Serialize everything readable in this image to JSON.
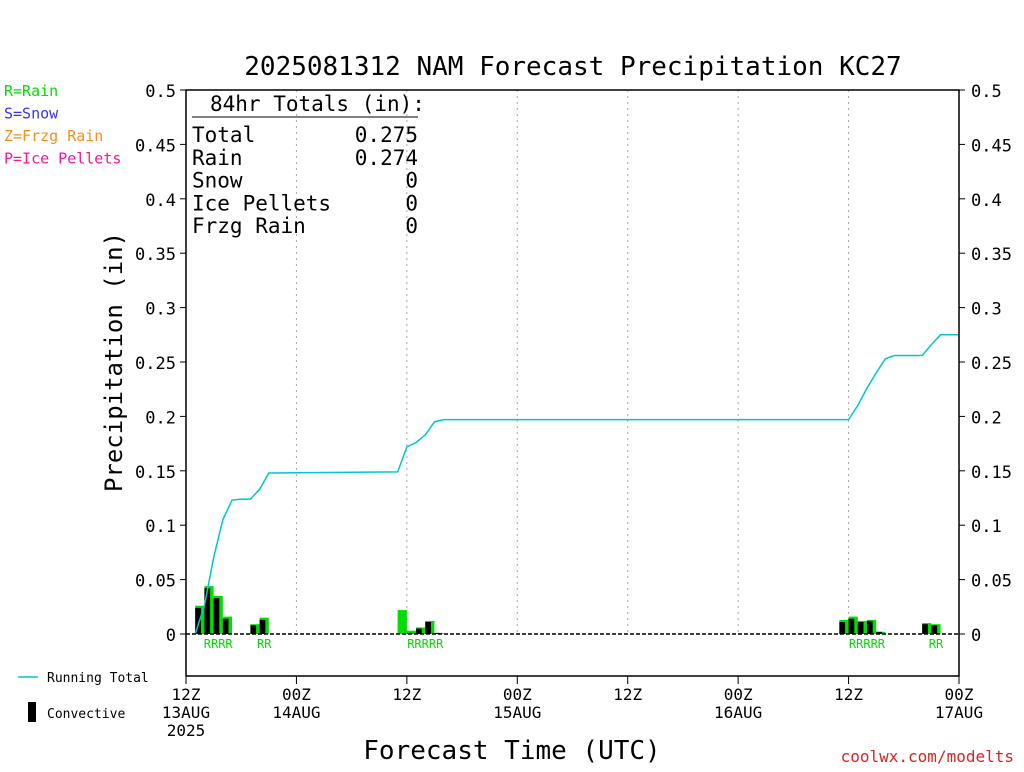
{
  "chart_data": {
    "type": "bar",
    "title": "2025081312 NAM Forecast Precipitation KC27",
    "xlabel": "Forecast Time (UTC)",
    "ylabel": "Precipitation (in)",
    "ylim": [
      0,
      0.5
    ],
    "xlim_hours": [
      0,
      84
    ],
    "y_ticks": [
      "0",
      "0.05",
      "0.1",
      "0.15",
      "0.2",
      "0.25",
      "0.3",
      "0.35",
      "0.4",
      "0.45",
      "0.5"
    ],
    "x_ticks": [
      {
        "hour": 0,
        "lines": [
          "12Z",
          "13AUG",
          "2025"
        ]
      },
      {
        "hour": 12,
        "lines": [
          "00Z",
          "14AUG"
        ]
      },
      {
        "hour": 24,
        "lines": [
          "12Z"
        ]
      },
      {
        "hour": 36,
        "lines": [
          "00Z",
          "15AUG"
        ]
      },
      {
        "hour": 48,
        "lines": [
          "12Z"
        ]
      },
      {
        "hour": 60,
        "lines": [
          "00Z",
          "16AUG"
        ]
      },
      {
        "hour": 72,
        "lines": [
          "12Z"
        ]
      },
      {
        "hour": 84,
        "lines": [
          "00Z",
          "17AUG"
        ]
      }
    ],
    "grid": "vertical dotted at 12Z/00Z",
    "precip_legend": [
      {
        "text": "R=Rain",
        "color": "#00dd00"
      },
      {
        "text": "S=Snow",
        "color": "#3333ff"
      },
      {
        "text": "Z=Frzg Rain",
        "color": "#ff8c1a"
      },
      {
        "text": "P=Ice Pellets",
        "color": "#ff1493"
      }
    ],
    "series_legend": {
      "running_total": "Running Total",
      "convective": "Convective"
    },
    "totals_box": {
      "header": "84hr Totals (in):",
      "rows": [
        {
          "label": "Total",
          "value": "0.275"
        },
        {
          "label": "Rain",
          "value": "0.274"
        },
        {
          "label": "Snow",
          "value": "0"
        },
        {
          "label": "Ice Pellets",
          "value": "0"
        },
        {
          "label": "Frzg Rain",
          "value": "0"
        }
      ]
    },
    "bars": [
      {
        "hour": 2,
        "total": 0.026,
        "convective": 0.024
      },
      {
        "hour": 3,
        "total": 0.044,
        "convective": 0.042
      },
      {
        "hour": 4,
        "total": 0.035,
        "convective": 0.033
      },
      {
        "hour": 5,
        "total": 0.016,
        "convective": 0.014
      },
      {
        "hour": 8,
        "total": 0.009,
        "convective": 0.008
      },
      {
        "hour": 9,
        "total": 0.015,
        "convective": 0.013
      },
      {
        "hour": 24,
        "total": 0.022,
        "convective": 0.0
      },
      {
        "hour": 25,
        "total": 0.003,
        "convective": 0.001
      },
      {
        "hour": 26,
        "total": 0.006,
        "convective": 0.005
      },
      {
        "hour": 27,
        "total": 0.012,
        "convective": 0.011
      },
      {
        "hour": 28,
        "total": 0.001,
        "convective": 0.001
      },
      {
        "hour": 72,
        "total": 0.013,
        "convective": 0.011
      },
      {
        "hour": 73,
        "total": 0.016,
        "convective": 0.014
      },
      {
        "hour": 74,
        "total": 0.012,
        "convective": 0.011
      },
      {
        "hour": 75,
        "total": 0.013,
        "convective": 0.012
      },
      {
        "hour": 76,
        "total": 0.002,
        "convective": 0.002
      },
      {
        "hour": 81,
        "total": 0.01,
        "convective": 0.009
      },
      {
        "hour": 82,
        "total": 0.009,
        "convective": 0.008
      }
    ],
    "running_total": [
      {
        "hour": 1,
        "value": 0.0
      },
      {
        "hour": 2,
        "value": 0.026
      },
      {
        "hour": 3,
        "value": 0.07
      },
      {
        "hour": 4,
        "value": 0.105
      },
      {
        "hour": 5,
        "value": 0.123
      },
      {
        "hour": 6,
        "value": 0.124
      },
      {
        "hour": 7,
        "value": 0.124
      },
      {
        "hour": 8,
        "value": 0.133
      },
      {
        "hour": 9,
        "value": 0.148
      },
      {
        "hour": 23,
        "value": 0.149
      },
      {
        "hour": 24,
        "value": 0.172
      },
      {
        "hour": 25,
        "value": 0.176
      },
      {
        "hour": 26,
        "value": 0.183
      },
      {
        "hour": 27,
        "value": 0.195
      },
      {
        "hour": 28,
        "value": 0.197
      },
      {
        "hour": 72,
        "value": 0.197
      },
      {
        "hour": 73,
        "value": 0.21
      },
      {
        "hour": 74,
        "value": 0.226
      },
      {
        "hour": 75,
        "value": 0.24
      },
      {
        "hour": 76,
        "value": 0.253
      },
      {
        "hour": 77,
        "value": 0.256
      },
      {
        "hour": 80,
        "value": 0.256
      },
      {
        "hour": 81,
        "value": 0.266
      },
      {
        "hour": 82,
        "value": 0.275
      },
      {
        "hour": 84,
        "value": 0.275
      }
    ],
    "precip_type_labels": [
      {
        "hour": 3.5,
        "text": "RRRR"
      },
      {
        "hour": 8.5,
        "text": "RR"
      },
      {
        "hour": 26,
        "text": "RRRRR"
      },
      {
        "hour": 74,
        "text": "RRRRR"
      },
      {
        "hour": 81.5,
        "text": "RR"
      }
    ],
    "credit": "coolwx.com/modelts",
    "colors": {
      "rain_bar": "#00dd00",
      "convective_bar": "#000000",
      "running_total_line": "#00c8c8",
      "grid": "#aaaaaa",
      "credit": "#dd2222"
    }
  }
}
